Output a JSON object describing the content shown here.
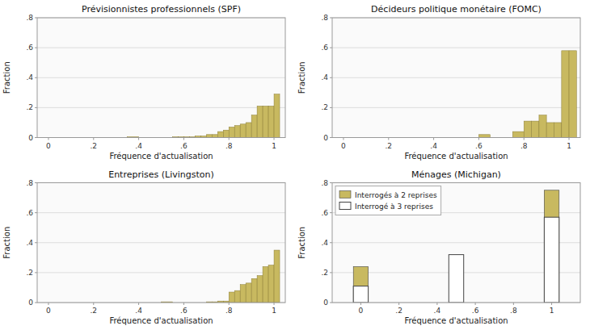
{
  "chart_data": [
    {
      "type": "histogram",
      "title": "Prévisionnistes professionnels (SPF)",
      "xlabel": "Fréquence d'actualisation",
      "ylabel": "Fraction",
      "bins": [
        0.35,
        0.4,
        0.45,
        0.5,
        0.55,
        0.575,
        0.6,
        0.625,
        0.65,
        0.675,
        0.7,
        0.725,
        0.75,
        0.775,
        0.8,
        0.825,
        0.85,
        0.875,
        0.9,
        0.925,
        0.95,
        0.975,
        1.0,
        1.025
      ],
      "values": [
        0.005,
        0.0,
        0.0,
        0.0,
        0.005,
        0.005,
        0.005,
        0.005,
        0.01,
        0.01,
        0.02,
        0.02,
        0.04,
        0.05,
        0.07,
        0.08,
        0.09,
        0.1,
        0.15,
        0.21,
        0.21,
        0.21,
        0.29
      ],
      "color": "#c8b960",
      "xlim": [
        -0.05,
        1.05
      ],
      "xticks": [
        0,
        {
          "value": 0.2,
          "label": ".2"
        },
        {
          "value": 0.4,
          "label": ".4"
        },
        {
          "value": 0.6,
          "label": ".6"
        },
        {
          "value": 0.8,
          "label": ".8"
        },
        1
      ],
      "ylim": [
        0,
        0.8
      ],
      "yticks": [
        0,
        {
          "value": 0.2,
          "label": ".2"
        },
        {
          "value": 0.4,
          "label": ".4"
        },
        {
          "value": 0.6,
          "label": ".6"
        },
        {
          "value": 0.8,
          "label": ".8"
        }
      ],
      "grid": true
    },
    {
      "type": "histogram",
      "title": "Décideurs politique monétaire (FOMC)",
      "xlabel": "Fréquence d'actualisation",
      "ylabel": "Fraction",
      "bins": [
        0.6,
        0.65,
        0.7,
        0.75,
        0.8,
        0.833,
        0.867,
        0.9,
        0.933,
        0.967,
        1.0,
        1.033
      ],
      "values": [
        0.02,
        0.0,
        0.0,
        0.04,
        0.11,
        0.11,
        0.15,
        0.1,
        0.1,
        0.58,
        0.58
      ],
      "color": "#c8b960",
      "xlim": [
        -0.05,
        1.05
      ],
      "xticks": [
        0,
        {
          "value": 0.2,
          "label": ".2"
        },
        {
          "value": 0.4,
          "label": ".4"
        },
        {
          "value": 0.6,
          "label": ".6"
        },
        {
          "value": 0.8,
          "label": ".8"
        },
        1
      ],
      "ylim": [
        0,
        0.8
      ],
      "yticks": [
        0,
        {
          "value": 0.2,
          "label": ".2"
        },
        {
          "value": 0.4,
          "label": ".4"
        },
        {
          "value": 0.6,
          "label": ".6"
        },
        {
          "value": 0.8,
          "label": ".8"
        }
      ],
      "grid": true
    },
    {
      "type": "histogram",
      "title": "Entreprises (Livingston)",
      "xlabel": "Fréquence d'actualisation",
      "ylabel": "Fraction",
      "bins": [
        0.5,
        0.55,
        0.6,
        0.65,
        0.7,
        0.725,
        0.75,
        0.775,
        0.8,
        0.825,
        0.85,
        0.875,
        0.9,
        0.925,
        0.95,
        0.975,
        1.0,
        1.025
      ],
      "values": [
        0.005,
        0.0,
        0.0,
        0.0,
        0.005,
        0.005,
        0.01,
        0.01,
        0.07,
        0.08,
        0.12,
        0.13,
        0.16,
        0.18,
        0.24,
        0.25,
        0.35
      ],
      "color": "#c8b960",
      "xlim": [
        -0.05,
        1.05
      ],
      "xticks": [
        0,
        {
          "value": 0.2,
          "label": ".2"
        },
        {
          "value": 0.4,
          "label": ".4"
        },
        {
          "value": 0.6,
          "label": ".6"
        },
        {
          "value": 0.8,
          "label": ".8"
        },
        1
      ],
      "ylim": [
        0,
        0.8
      ],
      "yticks": [
        0,
        {
          "value": 0.2,
          "label": ".2"
        },
        {
          "value": 0.4,
          "label": ".4"
        },
        {
          "value": 0.6,
          "label": ".6"
        },
        {
          "value": 0.8,
          "label": ".8"
        }
      ],
      "grid": true
    },
    {
      "type": "bar",
      "title": "Ménages (Michigan)",
      "xlabel": "Fréquence d'actualisation",
      "ylabel": "Fraction",
      "series": [
        {
          "name": "Interrogés à 2 reprises",
          "color": "#c8b960",
          "x": [
            0.0,
            1.0
          ],
          "values": [
            0.24,
            0.75
          ]
        },
        {
          "name": "Interrogé à 3 reprises",
          "color": "white",
          "x": [
            0.0,
            0.5,
            1.0
          ],
          "values": [
            0.11,
            0.32,
            0.57
          ]
        }
      ],
      "xlim": [
        -0.15,
        1.15
      ],
      "xticks": [
        0,
        {
          "value": 0.2,
          "label": ".2"
        },
        {
          "value": 0.4,
          "label": ".4"
        },
        {
          "value": 0.6,
          "label": ".6"
        },
        {
          "value": 0.8,
          "label": ".8"
        },
        1
      ],
      "ylim": [
        0,
        0.8
      ],
      "yticks": [
        0,
        {
          "value": 0.2,
          "label": ".2"
        },
        {
          "value": 0.4,
          "label": ".4"
        },
        {
          "value": 0.6,
          "label": ".6"
        },
        {
          "value": 0.8,
          "label": ".8"
        }
      ],
      "grid": true,
      "legend": "upper left"
    }
  ]
}
